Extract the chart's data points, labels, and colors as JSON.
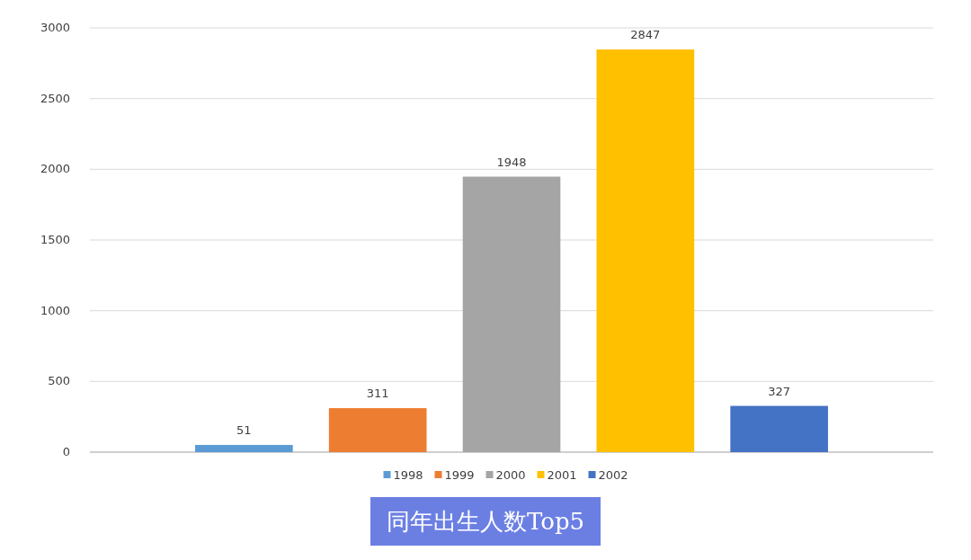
{
  "chart_data": {
    "type": "bar",
    "title": "同年出生人数Top5",
    "categories": [
      null
    ],
    "series": [
      {
        "name": "1998",
        "color": "#5b9bd5",
        "values": [
          51
        ]
      },
      {
        "name": "1999",
        "color": "#ed7d31",
        "values": [
          311
        ]
      },
      {
        "name": "2000",
        "color": "#a5a5a5",
        "values": [
          1948
        ]
      },
      {
        "name": "2001",
        "color": "#ffc000",
        "values": [
          2847
        ]
      },
      {
        "name": "2002",
        "color": "#4472c4",
        "values": [
          327
        ]
      }
    ],
    "ylim": [
      0,
      3000
    ],
    "yticks": [
      0,
      500,
      1000,
      1500,
      2000,
      2500,
      3000
    ],
    "grid": "y",
    "legend": "bottom",
    "data_labels": true
  }
}
